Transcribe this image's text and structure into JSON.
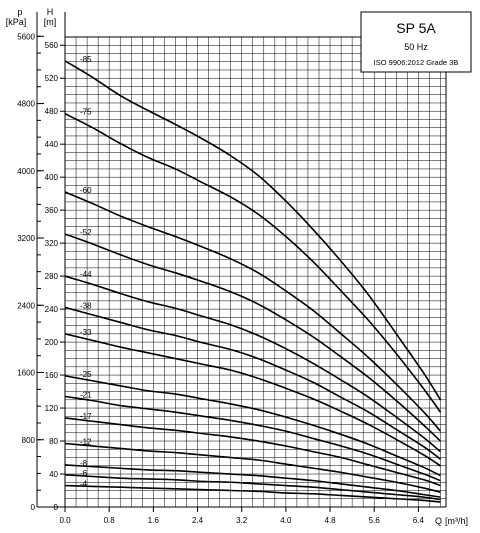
{
  "chart_data": {
    "type": "line",
    "title": "SP 5A",
    "subtitle": "50 Hz",
    "standard": "ISO 9906:2012 Grade 3B",
    "xlabel": "Q",
    "xunit": "[m³/h]",
    "ylabel": "H",
    "yunit": "[m]",
    "y2label": "p",
    "y2unit": "[kPa]",
    "xlim": [
      0,
      6.9
    ],
    "ylim": [
      0,
      570
    ],
    "x_ticks": [
      "0.0",
      "0.8",
      "1.6",
      "2.4",
      "3.2",
      "4.0",
      "4.8",
      "5.6",
      "6.4"
    ],
    "y_ticks": [
      "0",
      "40",
      "80",
      "120",
      "160",
      "200",
      "240",
      "280",
      "320",
      "360",
      "400",
      "440",
      "480",
      "520",
      "560"
    ],
    "y2_ticks": [
      "0",
      "800",
      "1600",
      "2400",
      "3200",
      "4000",
      "4800",
      "5600"
    ],
    "grid": true,
    "series": [
      {
        "name": "-85",
        "x": [
          0,
          0.5,
          1,
          1.5,
          2,
          2.5,
          3,
          3.5,
          4,
          4.5,
          5,
          5.5,
          6,
          6.5,
          6.8
        ],
        "y": [
          541,
          521,
          499,
          481,
          464,
          446,
          426,
          402,
          371,
          336,
          298,
          257,
          210,
          162,
          130
        ]
      },
      {
        "name": "-75",
        "x": [
          0,
          0.5,
          1,
          1.5,
          2,
          2.5,
          3,
          3.5,
          4,
          4.5,
          5,
          5.5,
          6,
          6.5,
          6.8
        ],
        "y": [
          477,
          460,
          441,
          424,
          410,
          393,
          376,
          355,
          328,
          297,
          262,
          226,
          186,
          143,
          115
        ]
      },
      {
        "name": "-60",
        "x": [
          0,
          0.5,
          1,
          1.5,
          2,
          2.5,
          3,
          3.5,
          4,
          4.5,
          5,
          5.5,
          6,
          6.5,
          6.8
        ],
        "y": [
          382,
          368,
          353,
          340,
          328,
          315,
          301,
          284,
          262,
          238,
          210,
          181,
          149,
          115,
          92
        ]
      },
      {
        "name": "-52",
        "x": [
          0,
          0.5,
          1,
          1.5,
          2,
          2.5,
          3,
          3.5,
          4,
          4.5,
          5,
          5.5,
          6,
          6.5,
          6.8
        ],
        "y": [
          331,
          319,
          306,
          294,
          284,
          273,
          261,
          246,
          227,
          206,
          182,
          157,
          129,
          99,
          80
        ]
      },
      {
        "name": "-44",
        "x": [
          0,
          0.5,
          1,
          1.5,
          2,
          2.5,
          3,
          3.5,
          4,
          4.5,
          5,
          5.5,
          6,
          6.5,
          6.8
        ],
        "y": [
          280,
          270,
          259,
          249,
          241,
          231,
          221,
          208,
          192,
          174,
          154,
          133,
          109,
          84,
          67
        ]
      },
      {
        "name": "-38",
        "x": [
          0,
          0.5,
          1,
          1.5,
          2,
          2.5,
          3,
          3.5,
          4,
          4.5,
          5,
          5.5,
          6,
          6.5,
          6.8
        ],
        "y": [
          242,
          233,
          224,
          215,
          208,
          199,
          191,
          180,
          166,
          151,
          133,
          115,
          94,
          73,
          58
        ]
      },
      {
        "name": "-33",
        "x": [
          0,
          0.5,
          1,
          1.5,
          2,
          2.5,
          3,
          3.5,
          4,
          4.5,
          5,
          5.5,
          6,
          6.5,
          6.8
        ],
        "y": [
          210,
          202,
          194,
          187,
          180,
          173,
          166,
          156,
          144,
          131,
          116,
          100,
          82,
          63,
          50
        ]
      },
      {
        "name": "-25",
        "x": [
          0,
          0.5,
          1,
          1.5,
          2,
          2.5,
          3,
          3.5,
          4,
          4.5,
          5,
          5.5,
          6,
          6.5,
          6.8
        ],
        "y": [
          159,
          153,
          147,
          141,
          137,
          131,
          125,
          118,
          109,
          99,
          88,
          76,
          62,
          48,
          38
        ]
      },
      {
        "name": "-21",
        "x": [
          0,
          0.5,
          1,
          1.5,
          2,
          2.5,
          3,
          3.5,
          4,
          4.5,
          5,
          5.5,
          6,
          6.5,
          6.8
        ],
        "y": [
          134,
          129,
          123,
          119,
          115,
          110,
          105,
          99,
          92,
          83,
          74,
          64,
          52,
          40,
          32
        ]
      },
      {
        "name": "-17",
        "x": [
          0,
          0.5,
          1,
          1.5,
          2,
          2.5,
          3,
          3.5,
          4,
          4.5,
          5,
          5.5,
          6,
          6.5,
          6.8
        ],
        "y": [
          108,
          104,
          100,
          96,
          93,
          89,
          85,
          80,
          74,
          67,
          60,
          51,
          42,
          33,
          26
        ]
      },
      {
        "name": "-12",
        "x": [
          0,
          0.5,
          1,
          1.5,
          2,
          2.5,
          3,
          3.5,
          4,
          4.5,
          5,
          5.5,
          6,
          6.5,
          6.8
        ],
        "y": [
          77,
          74,
          71,
          68,
          66,
          63,
          60,
          57,
          52,
          47,
          42,
          36,
          30,
          23,
          18
        ]
      },
      {
        "name": "-8",
        "x": [
          0,
          0.5,
          1,
          1.5,
          2,
          2.5,
          3,
          3.5,
          4,
          4.5,
          5,
          5.5,
          6,
          6.5,
          6.8
        ],
        "y": [
          51,
          49,
          47,
          45,
          44,
          42,
          40,
          38,
          35,
          32,
          28,
          24,
          20,
          15,
          12
        ]
      },
      {
        "name": "-6",
        "x": [
          0,
          0.5,
          1,
          1.5,
          2,
          2.5,
          3,
          3.5,
          4,
          4.5,
          5,
          5.5,
          6,
          6.5,
          6.8
        ],
        "y": [
          39,
          37,
          35,
          34,
          33,
          31,
          30,
          28,
          26,
          24,
          21,
          18,
          15,
          12,
          9
        ]
      },
      {
        "name": "-4",
        "x": [
          0,
          0.5,
          1,
          1.5,
          2,
          2.5,
          3,
          3.5,
          4,
          4.5,
          5,
          5.5,
          6,
          6.5,
          6.8
        ],
        "y": [
          26,
          25,
          24,
          23,
          22,
          21,
          20,
          19,
          17,
          16,
          14,
          12,
          10,
          8,
          6
        ]
      }
    ]
  }
}
